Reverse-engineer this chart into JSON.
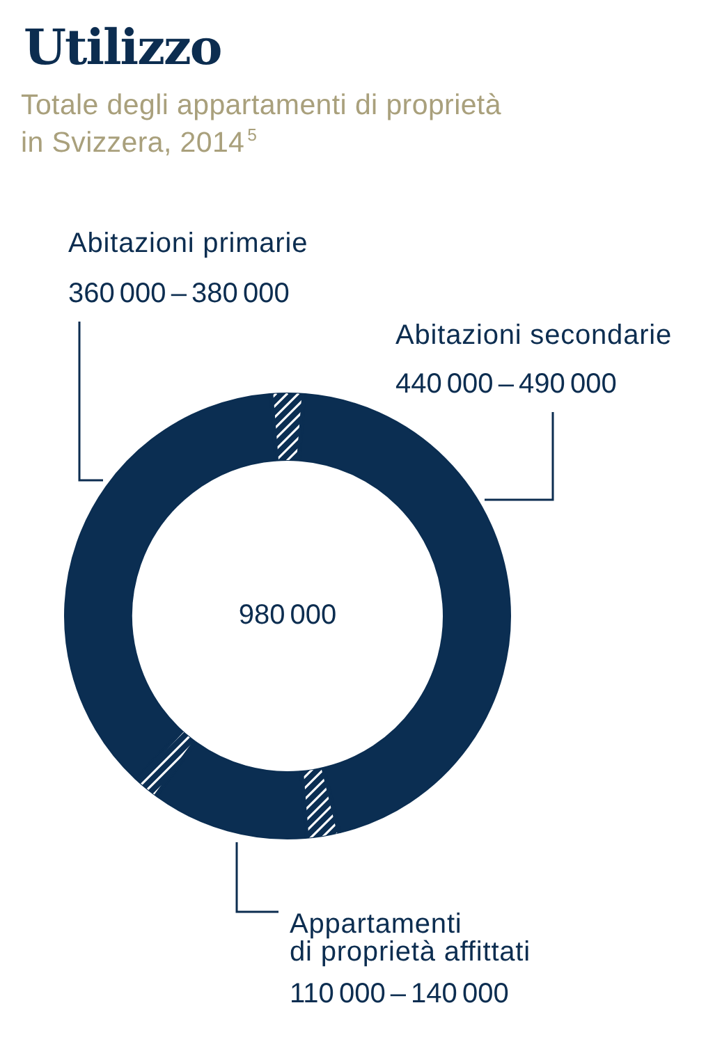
{
  "chart_data": {
    "type": "donut",
    "title": "Utilizzo",
    "subtitle": "Totale degli appartamenti di proprietà in Svizzera, 2014$^{5}$",
    "categories": [
      "Abitazioni secondarie",
      null,
      "Appartamenti di proprietà affittati",
      null,
      "Abitazioni primarie",
      null
    ],
    "values": [
      440000,
      25000,
      110000,
      20000,
      360000,
      25000
    ],
    "colors": [
      "#0b2e52",
      "#0b2e52",
      "#0b2e52",
      "#0b2e52",
      "#0b2e52",
      "#0b2e52"
    ],
    "value_labels": [
      "440 000 – 490 000",
      null,
      "110 000 – 140 000",
      null,
      "360 000 – 380 000",
      null
    ],
    "annotations": [
      "980 000"
    ],
    "legend": false
  }
}
